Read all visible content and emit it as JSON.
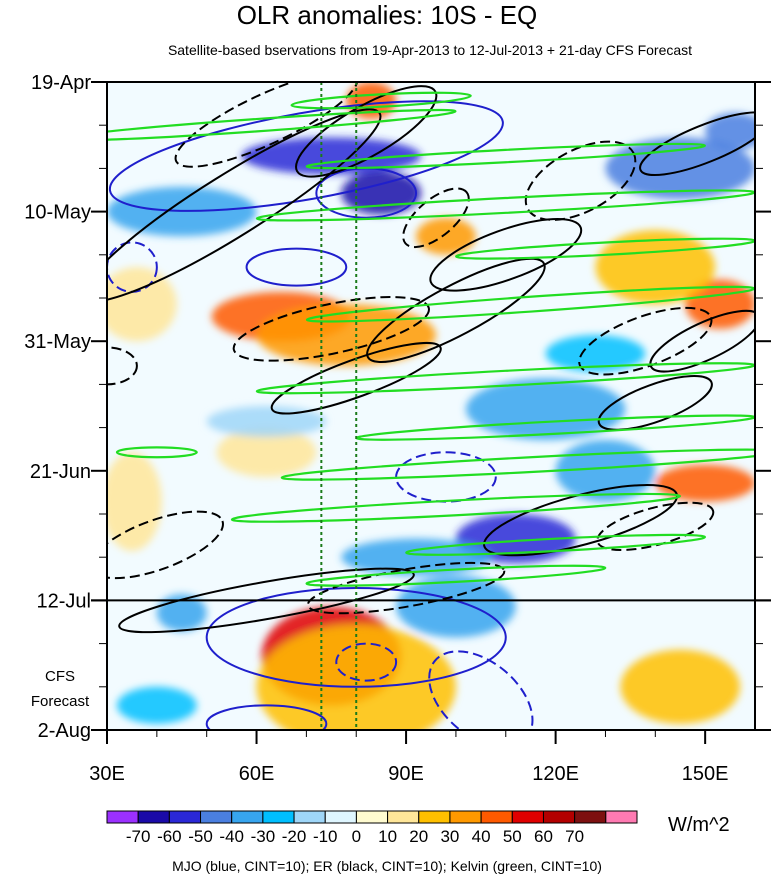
{
  "chart_data": {
    "type": "heatmap",
    "title": "OLR anomalies: 10S - EQ",
    "subtitle": "Satellite-based bservations from 19-Apr-2013 to 12-Jul-2013 + 21-day CFS Forecast",
    "x_ticks": [
      "30E",
      "60E",
      "90E",
      "120E",
      "150E"
    ],
    "x_tick_values": [
      30,
      60,
      90,
      120,
      150
    ],
    "xlim": [
      30,
      160
    ],
    "y_ticks": [
      "19-Apr",
      "10-May",
      "31-May",
      "21-Jun",
      "12-Jul",
      "2-Aug"
    ],
    "y_tick_values": [
      0,
      21,
      42,
      63,
      84,
      105
    ],
    "ylim": [
      0,
      105
    ],
    "y_reversed": true,
    "forecast_label_lines": [
      "CFS",
      "Forecast"
    ],
    "observation_end_day": 84,
    "vertical_reference_lon": [
      73,
      80
    ],
    "colorbar": {
      "levels": [
        -70,
        -60,
        -50,
        -40,
        -30,
        -20,
        -10,
        0,
        10,
        20,
        30,
        40,
        50,
        60,
        70
      ],
      "labels": [
        "-70",
        "-60",
        "-50",
        "-40",
        "-30",
        "-20",
        "-10",
        "0",
        "10",
        "20",
        "30",
        "40",
        "50",
        "60",
        "70"
      ],
      "colors": [
        "#9b30ff",
        "#1a0aa8",
        "#2a28d6",
        "#4a7fe0",
        "#37a5ef",
        "#00bfff",
        "#9fd6f8",
        "#dff6ff",
        "#fffbd0",
        "#ffe699",
        "#ffc000",
        "#ff9900",
        "#ff5a00",
        "#e00000",
        "#b30000",
        "#7d1010",
        "#ff7ab2"
      ],
      "units": "W/m^2"
    },
    "anomaly_features": [
      {
        "lon": 85,
        "day": 18,
        "value": -65,
        "rx": 8,
        "ry": 3.5
      },
      {
        "lon": 75,
        "day": 12,
        "value": -55,
        "rx": 18,
        "ry": 3
      },
      {
        "lon": 45,
        "day": 21,
        "value": -40,
        "rx": 15,
        "ry": 4
      },
      {
        "lon": 65,
        "day": 38,
        "value": 45,
        "rx": 14,
        "ry": 4
      },
      {
        "lon": 78,
        "day": 41,
        "value": 35,
        "rx": 18,
        "ry": 5
      },
      {
        "lon": 98,
        "day": 25,
        "value": 35,
        "rx": 6,
        "ry": 3
      },
      {
        "lon": 83,
        "day": 3,
        "value": 40,
        "rx": 5,
        "ry": 3
      },
      {
        "lon": 75,
        "day": 93,
        "value": 50,
        "rx": 14,
        "ry": 8
      },
      {
        "lon": 80,
        "day": 98,
        "value": 25,
        "rx": 20,
        "ry": 10
      },
      {
        "lon": 45,
        "day": 86,
        "value": -35,
        "rx": 5,
        "ry": 3
      },
      {
        "lon": 40,
        "day": 101,
        "value": -30,
        "rx": 8,
        "ry": 3
      },
      {
        "lon": 112,
        "day": 74,
        "value": -55,
        "rx": 12,
        "ry": 4
      },
      {
        "lon": 100,
        "day": 85,
        "value": -40,
        "rx": 12,
        "ry": 5
      },
      {
        "lon": 92,
        "day": 77,
        "value": -35,
        "rx": 15,
        "ry": 3
      },
      {
        "lon": 118,
        "day": 53,
        "value": -40,
        "rx": 16,
        "ry": 5
      },
      {
        "lon": 130,
        "day": 63,
        "value": -35,
        "rx": 10,
        "ry": 5
      },
      {
        "lon": 145,
        "day": 14,
        "value": -45,
        "rx": 15,
        "ry": 5
      },
      {
        "lon": 156,
        "day": 8,
        "value": -50,
        "rx": 6,
        "ry": 3
      },
      {
        "lon": 153,
        "day": 36,
        "value": 45,
        "rx": 7,
        "ry": 4
      },
      {
        "lon": 150,
        "day": 65,
        "value": 40,
        "rx": 10,
        "ry": 3
      },
      {
        "lon": 140,
        "day": 30,
        "value": 25,
        "rx": 12,
        "ry": 6
      },
      {
        "lon": 145,
        "day": 98,
        "value": 20,
        "rx": 12,
        "ry": 6
      },
      {
        "lon": 35,
        "day": 68,
        "value": 15,
        "rx": 6,
        "ry": 8
      },
      {
        "lon": 36,
        "day": 36,
        "value": 10,
        "rx": 8,
        "ry": 6
      },
      {
        "lon": 62,
        "day": 60,
        "value": 15,
        "rx": 10,
        "ry": 4
      },
      {
        "lon": 62,
        "day": 55,
        "value": -20,
        "rx": 12,
        "ry": 2.5
      },
      {
        "lon": 128,
        "day": 44,
        "value": -30,
        "rx": 10,
        "ry": 3
      }
    ],
    "contours": {
      "mjo": {
        "color": "#1f1fcc",
        "cint": 10,
        "shapes": [
          {
            "lon": 105,
            "day": 100,
            "rx": 12,
            "ry": 6,
            "rot": 40,
            "dash": true
          },
          {
            "lon": 82,
            "day": 94,
            "rx": 6,
            "ry": 3,
            "rot": 0,
            "dash": true
          },
          {
            "lon": 70,
            "day": 12,
            "rx": 40,
            "ry": 7,
            "rot": -10,
            "dash": false
          },
          {
            "lon": 82,
            "day": 18,
            "rx": 10,
            "ry": 4,
            "rot": 0,
            "dash": false
          },
          {
            "lon": 80,
            "day": 90,
            "rx": 30,
            "ry": 8,
            "rot": 0,
            "dash": false
          },
          {
            "lon": 68,
            "day": 30,
            "rx": 10,
            "ry": 3,
            "rot": 0,
            "dash": false
          },
          {
            "lon": 98,
            "day": 64,
            "rx": 10,
            "ry": 4,
            "rot": 0,
            "dash": true
          },
          {
            "lon": 35,
            "day": 30,
            "rx": 5,
            "ry": 4,
            "rot": 0,
            "dash": true
          },
          {
            "lon": 62,
            "day": 104,
            "rx": 12,
            "ry": 3,
            "rot": 0,
            "dash": false
          }
        ]
      },
      "er": {
        "color": "#000000",
        "cint": 10,
        "shapes": [
          {
            "lon": 55,
            "day": 20,
            "rx": 35,
            "ry": 5,
            "rot": -32,
            "dash": false
          },
          {
            "lon": 82,
            "day": 8,
            "rx": 16,
            "ry": 4,
            "rot": -30,
            "dash": false
          },
          {
            "lon": 110,
            "day": 28,
            "rx": 16,
            "ry": 4,
            "rot": -20,
            "dash": false
          },
          {
            "lon": 150,
            "day": 10,
            "rx": 14,
            "ry": 3,
            "rot": -22,
            "dash": false
          },
          {
            "lon": 100,
            "day": 37,
            "rx": 20,
            "ry": 4,
            "rot": -28,
            "dash": false
          },
          {
            "lon": 150,
            "day": 42,
            "rx": 12,
            "ry": 3,
            "rot": -25,
            "dash": false
          },
          {
            "lon": 140,
            "day": 52,
            "rx": 12,
            "ry": 3,
            "rot": -20,
            "dash": false
          },
          {
            "lon": 125,
            "day": 71,
            "rx": 20,
            "ry": 4,
            "rot": -15,
            "dash": false
          },
          {
            "lon": 62,
            "day": 84,
            "rx": 30,
            "ry": 3,
            "rot": -10,
            "dash": false
          },
          {
            "lon": 80,
            "day": 48,
            "rx": 18,
            "ry": 3,
            "rot": -20,
            "dash": false
          },
          {
            "lon": 62,
            "day": 6,
            "rx": 20,
            "ry": 4,
            "rot": -25,
            "dash": true
          },
          {
            "lon": 40,
            "day": 75,
            "rx": 14,
            "ry": 4,
            "rot": -20,
            "dash": true
          },
          {
            "lon": 75,
            "day": 40,
            "rx": 20,
            "ry": 4,
            "rot": -12,
            "dash": true
          },
          {
            "lon": 125,
            "day": 16,
            "rx": 12,
            "ry": 5,
            "rot": -28,
            "dash": true
          },
          {
            "lon": 138,
            "day": 42,
            "rx": 14,
            "ry": 4,
            "rot": -20,
            "dash": true
          },
          {
            "lon": 96,
            "day": 22,
            "rx": 8,
            "ry": 3,
            "rot": -40,
            "dash": true
          },
          {
            "lon": 90,
            "day": 82,
            "rx": 20,
            "ry": 3,
            "rot": -10,
            "dash": true
          },
          {
            "lon": 140,
            "day": 72,
            "rx": 12,
            "ry": 3,
            "rot": -15,
            "dash": true
          },
          {
            "lon": 30,
            "day": 46,
            "rx": 6,
            "ry": 3,
            "rot": 0,
            "dash": true
          }
        ]
      },
      "kelvin": {
        "color": "#22dd22",
        "cint": 10,
        "shapes": [
          {
            "lon": 85,
            "day": 3,
            "rx": 18,
            "ry": 1,
            "rot": -3,
            "dash": false
          },
          {
            "lon": 60,
            "day": 7,
            "rx": 40,
            "ry": 1,
            "rot": -4,
            "dash": false
          },
          {
            "lon": 110,
            "day": 12,
            "rx": 40,
            "ry": 1,
            "rot": -3,
            "dash": false
          },
          {
            "lon": 110,
            "day": 20,
            "rx": 50,
            "ry": 1.2,
            "rot": -3,
            "dash": false
          },
          {
            "lon": 130,
            "day": 27,
            "rx": 30,
            "ry": 1,
            "rot": -3,
            "dash": false
          },
          {
            "lon": 115,
            "day": 36,
            "rx": 45,
            "ry": 1.2,
            "rot": -4,
            "dash": false
          },
          {
            "lon": 110,
            "day": 48,
            "rx": 50,
            "ry": 1.2,
            "rot": -3,
            "dash": false
          },
          {
            "lon": 120,
            "day": 56,
            "rx": 40,
            "ry": 1,
            "rot": -3,
            "dash": false
          },
          {
            "lon": 115,
            "day": 62,
            "rx": 50,
            "ry": 1.2,
            "rot": -3,
            "dash": false
          },
          {
            "lon": 100,
            "day": 69,
            "rx": 45,
            "ry": 1.2,
            "rot": -3,
            "dash": false
          },
          {
            "lon": 120,
            "day": 75,
            "rx": 30,
            "ry": 1,
            "rot": -3,
            "dash": false
          },
          {
            "lon": 100,
            "day": 80,
            "rx": 30,
            "ry": 1,
            "rot": -3,
            "dash": false
          },
          {
            "lon": 40,
            "day": 60,
            "rx": 8,
            "ry": 0.8,
            "rot": 0,
            "dash": false
          }
        ]
      }
    }
  },
  "units_label": "W/m^2",
  "footer": "MJO (blue, CINT=10); ER (black, CINT=10); Kelvin (green, CINT=10)"
}
